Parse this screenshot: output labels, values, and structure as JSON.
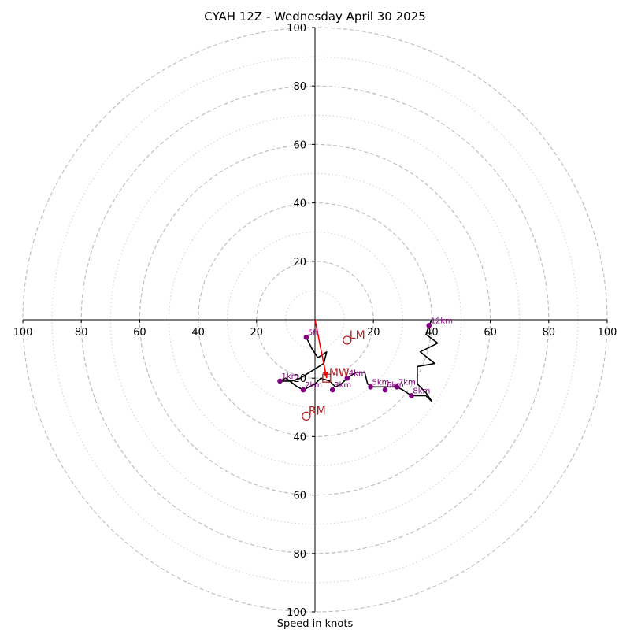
{
  "chart_data": {
    "type": "hodograph",
    "title": "CYAH 12Z - Wednesday April 30 2025",
    "xlabel": "Speed in knots",
    "axis_range": [
      -100,
      100
    ],
    "ring_speeds_dashed": [
      20,
      40,
      60,
      80,
      100
    ],
    "ring_speeds_dotted": [
      10,
      30,
      50,
      70,
      90
    ],
    "x_ticks": [
      "100",
      "80",
      "60",
      "40",
      "20",
      "20",
      "40",
      "60",
      "80",
      "100"
    ],
    "x_tick_values": [
      -100,
      -80,
      -60,
      -40,
      -20,
      20,
      40,
      60,
      80,
      100
    ],
    "y_ticks": [
      "100",
      "80",
      "60",
      "40",
      "20",
      "20",
      "40",
      "60",
      "80",
      "100"
    ],
    "y_tick_values": [
      100,
      80,
      60,
      40,
      20,
      -20,
      -40,
      -60,
      -80,
      -100
    ],
    "profile": [
      [
        -3,
        -6
      ],
      [
        -1,
        -10
      ],
      [
        1,
        -13
      ],
      [
        4,
        -11
      ],
      [
        3,
        -15
      ],
      [
        -5,
        -20
      ],
      [
        -8,
        -21
      ],
      [
        -12,
        -21
      ],
      [
        -10,
        -20
      ],
      [
        -6,
        -23
      ],
      [
        -4,
        -24
      ],
      [
        0,
        -22
      ],
      [
        2,
        -20
      ],
      [
        5,
        -21
      ],
      [
        7,
        -23
      ],
      [
        9,
        -22
      ],
      [
        11,
        -20
      ],
      [
        14,
        -18
      ],
      [
        17,
        -18
      ],
      [
        18,
        -22
      ],
      [
        20,
        -23
      ],
      [
        23,
        -23
      ],
      [
        26,
        -23
      ],
      [
        28,
        -23
      ],
      [
        30,
        -24
      ],
      [
        33,
        -26
      ],
      [
        38,
        -26
      ],
      [
        40,
        -28
      ],
      [
        38,
        -25
      ],
      [
        35,
        -22
      ],
      [
        35,
        -16
      ],
      [
        41,
        -15
      ],
      [
        36,
        -11
      ],
      [
        42,
        -8
      ],
      [
        38,
        -5
      ],
      [
        39,
        -2
      ],
      [
        40,
        0
      ]
    ],
    "height_markers": [
      {
        "label": "5ft",
        "u": -3,
        "v": -6
      },
      {
        "label": "1km",
        "u": -12,
        "v": -21
      },
      {
        "label": "2km",
        "u": -4,
        "v": -24
      },
      {
        "label": "3km",
        "u": 6,
        "v": -24
      },
      {
        "label": "4km",
        "u": 11,
        "v": -20
      },
      {
        "label": "5km",
        "u": 19,
        "v": -23
      },
      {
        "label": "6km",
        "u": 24,
        "v": -24
      },
      {
        "label": "7km",
        "u": 28,
        "v": -23
      },
      {
        "label": "8km",
        "u": 33,
        "v": -26
      },
      {
        "label": "12km",
        "u": 39,
        "v": -2
      }
    ],
    "storm_motion": [
      {
        "label": "LM",
        "u": 11,
        "v": -7,
        "marker": "circle"
      },
      {
        "label": "MW",
        "u": 4,
        "v": -20,
        "marker": "square"
      },
      {
        "label": "RM",
        "u": -3,
        "v": -33,
        "marker": "circle"
      }
    ],
    "shear_vector": {
      "from": [
        0,
        0
      ],
      "to": [
        4,
        -20
      ]
    },
    "colors": {
      "profile": "#000000",
      "markers": "#800080",
      "storm": "#b22222",
      "shear": "#ff0000",
      "grid": "#bfbfbf"
    }
  }
}
